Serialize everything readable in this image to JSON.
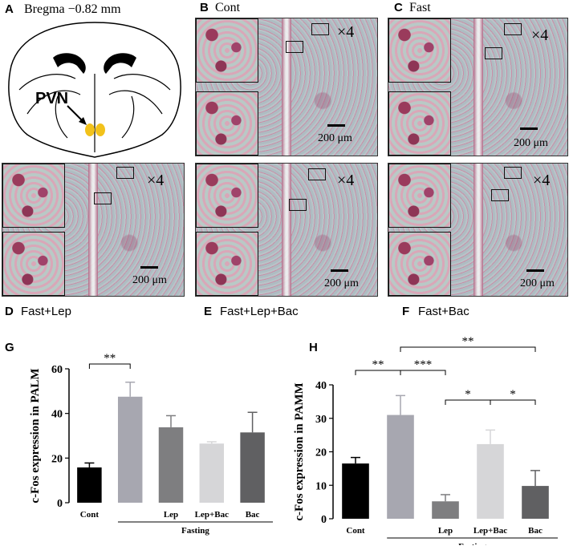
{
  "figure": {
    "panels": {
      "A": {
        "letter": "A",
        "title": "Bregma  −0.82 mm",
        "pvn_label": "PVN"
      },
      "B": {
        "letter": "B",
        "title": "Cont",
        "magnification": "×4",
        "scale": "200 μm"
      },
      "C": {
        "letter": "C",
        "title": "Fast",
        "magnification": "×4",
        "scale": "200 μm"
      },
      "D": {
        "letter": "D",
        "title": "Fast+Lep",
        "magnification": "×4",
        "scale": "200 μm"
      },
      "E": {
        "letter": "E",
        "title": "Fast+Lep+Bac",
        "magnification": "×4",
        "scale": "200 μm"
      },
      "F": {
        "letter": "F",
        "title": "Fast+Bac",
        "magnification": "×4",
        "scale": "200 μm"
      }
    }
  },
  "chart_data": [
    {
      "panel": "G",
      "type": "bar",
      "categories": [
        "Cont",
        "",
        "Lep",
        "Lep+Bac",
        "Bac"
      ],
      "group_label": "Fasting",
      "values": [
        15.8,
        47.5,
        33.8,
        26.5,
        31.5
      ],
      "errors": [
        2.0,
        6.5,
        5.2,
        0.8,
        9.0
      ],
      "colors": [
        "#000000",
        "#a7a7b0",
        "#7e7e80",
        "#d6d6d8",
        "#606062"
      ],
      "ylabel": "c-Fos expression in PALM",
      "ylim": [
        0,
        60
      ],
      "yticks": [
        0,
        20,
        40,
        60
      ],
      "significance": [
        {
          "from": 0,
          "to": 1,
          "label": "**"
        }
      ]
    },
    {
      "panel": "H",
      "type": "bar",
      "categories": [
        "Cont",
        "",
        "Lep",
        "Lep+Bac",
        "Bac"
      ],
      "group_label": "Fasting",
      "values": [
        16.5,
        31.0,
        5.2,
        22.3,
        9.8
      ],
      "errors": [
        1.8,
        5.8,
        2.0,
        4.2,
        4.6
      ],
      "colors": [
        "#000000",
        "#a7a7b0",
        "#7e7e80",
        "#d6d6d8",
        "#606062"
      ],
      "ylabel": "c-Fos expression in PAMM",
      "ylim": [
        0,
        40
      ],
      "yticks": [
        0,
        10,
        20,
        30,
        40
      ],
      "significance": [
        {
          "from": 0,
          "to": 1,
          "label": "**"
        },
        {
          "from": 1,
          "to": 2,
          "label": "***"
        },
        {
          "from": 2,
          "to": 3,
          "label": "*"
        },
        {
          "from": 3,
          "to": 4,
          "label": "*"
        },
        {
          "from": 1,
          "to": 4,
          "label": "**"
        }
      ]
    }
  ]
}
